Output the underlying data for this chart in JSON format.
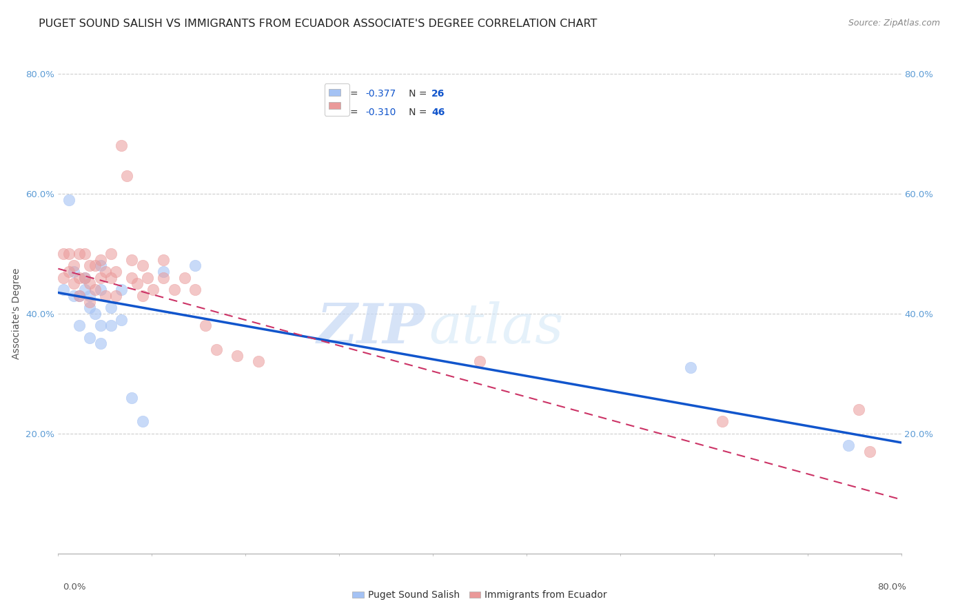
{
  "title": "PUGET SOUND SALISH VS IMMIGRANTS FROM ECUADOR ASSOCIATE'S DEGREE CORRELATION CHART",
  "source": "Source: ZipAtlas.com",
  "ylabel": "Associate's Degree",
  "xlim": [
    0.0,
    0.8
  ],
  "ylim": [
    0.0,
    0.8
  ],
  "ytick_vals": [
    0.2,
    0.4,
    0.6,
    0.8
  ],
  "ytick_labels": [
    "20.0%",
    "40.0%",
    "60.0%",
    "80.0%"
  ],
  "legend_r_n": [
    {
      "R": "-0.377",
      "N": "26"
    },
    {
      "R": "-0.310",
      "N": "46"
    }
  ],
  "blue_scatter_x": [
    0.005,
    0.01,
    0.015,
    0.015,
    0.02,
    0.02,
    0.025,
    0.025,
    0.03,
    0.03,
    0.03,
    0.035,
    0.04,
    0.04,
    0.04,
    0.04,
    0.05,
    0.05,
    0.06,
    0.06,
    0.07,
    0.08,
    0.1,
    0.13,
    0.6,
    0.75
  ],
  "blue_scatter_y": [
    0.44,
    0.59,
    0.43,
    0.47,
    0.43,
    0.38,
    0.46,
    0.44,
    0.41,
    0.36,
    0.43,
    0.4,
    0.48,
    0.44,
    0.38,
    0.35,
    0.41,
    0.38,
    0.44,
    0.39,
    0.26,
    0.22,
    0.47,
    0.48,
    0.31,
    0.18
  ],
  "pink_scatter_x": [
    0.005,
    0.005,
    0.01,
    0.01,
    0.015,
    0.015,
    0.02,
    0.02,
    0.02,
    0.025,
    0.025,
    0.03,
    0.03,
    0.03,
    0.035,
    0.035,
    0.04,
    0.04,
    0.045,
    0.045,
    0.05,
    0.05,
    0.055,
    0.055,
    0.06,
    0.065,
    0.07,
    0.07,
    0.075,
    0.08,
    0.08,
    0.085,
    0.09,
    0.1,
    0.1,
    0.11,
    0.12,
    0.13,
    0.14,
    0.15,
    0.17,
    0.19,
    0.4,
    0.63,
    0.76,
    0.77
  ],
  "pink_scatter_y": [
    0.5,
    0.46,
    0.5,
    0.47,
    0.48,
    0.45,
    0.5,
    0.46,
    0.43,
    0.5,
    0.46,
    0.48,
    0.45,
    0.42,
    0.48,
    0.44,
    0.49,
    0.46,
    0.47,
    0.43,
    0.5,
    0.46,
    0.47,
    0.43,
    0.68,
    0.63,
    0.49,
    0.46,
    0.45,
    0.48,
    0.43,
    0.46,
    0.44,
    0.49,
    0.46,
    0.44,
    0.46,
    0.44,
    0.38,
    0.34,
    0.33,
    0.32,
    0.32,
    0.22,
    0.24,
    0.17
  ],
  "blue_line_x": [
    0.0,
    0.8
  ],
  "blue_line_y": [
    0.435,
    0.185
  ],
  "pink_line_x": [
    0.0,
    0.8
  ],
  "pink_line_y": [
    0.475,
    0.09
  ],
  "blue_color": "#a4c2f4",
  "pink_color": "#ea9999",
  "blue_line_color": "#1155cc",
  "pink_line_color": "#cc3366",
  "grid_color": "#cccccc",
  "watermark_zip": "ZIP",
  "watermark_atlas": "atlas",
  "title_fontsize": 11.5,
  "source_fontsize": 9,
  "axis_label_fontsize": 10,
  "tick_fontsize": 9.5
}
